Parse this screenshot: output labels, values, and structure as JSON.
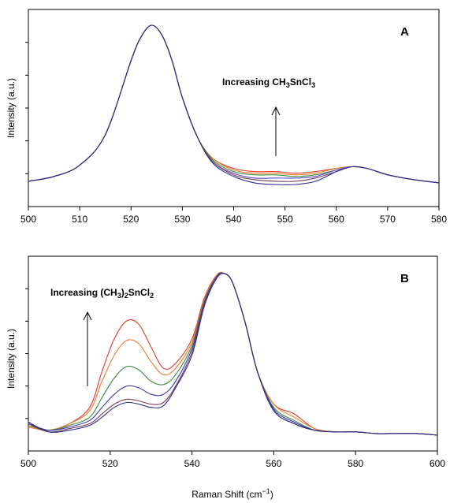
{
  "figure": {
    "xlabel_text": "Raman Shift (cm",
    "xlabel_sup": "−1",
    "xlabel_close": ")"
  },
  "chart_data": [
    {
      "type": "line",
      "panel": "A",
      "ylabel": "Intensity (a.u.)",
      "xlim": [
        500,
        580
      ],
      "x_ticks": [
        500,
        510,
        520,
        530,
        540,
        550,
        560,
        570,
        580
      ],
      "annotation": {
        "pre": "Increasing CH",
        "sub1": "3",
        "mid": "SnCl",
        "sub2": "3"
      },
      "colors": [
        "#e0392b",
        "#f07b2a",
        "#3a8a3a",
        "#5a4ac8",
        "#7a3a5a",
        "#2a2a8a"
      ],
      "series": [
        {
          "x": [
            500,
            505,
            510,
            515,
            520,
            522,
            524,
            526,
            528,
            530,
            533,
            536,
            540,
            544,
            548,
            552,
            556,
            560,
            563,
            566,
            570,
            575,
            580
          ],
          "values": [
            3,
            6,
            13,
            32,
            78,
            93,
            100,
            94,
            78,
            55,
            30,
            17,
            11,
            9,
            9,
            8,
            9,
            11,
            12,
            11,
            7,
            4,
            2
          ]
        },
        {
          "x": [
            500,
            505,
            510,
            515,
            520,
            522,
            524,
            526,
            528,
            530,
            533,
            536,
            540,
            544,
            548,
            552,
            556,
            560,
            563,
            566,
            570,
            575,
            580
          ],
          "values": [
            3,
            6,
            13,
            32,
            78,
            93,
            100,
            94,
            78,
            55,
            30,
            17,
            10,
            8,
            8,
            7,
            8,
            11,
            12,
            11,
            7,
            4,
            2
          ]
        },
        {
          "x": [
            500,
            505,
            510,
            515,
            520,
            522,
            524,
            526,
            528,
            530,
            533,
            536,
            540,
            544,
            548,
            552,
            556,
            560,
            563,
            566,
            570,
            575,
            580
          ],
          "values": [
            3,
            6,
            13,
            32,
            78,
            93,
            100,
            94,
            78,
            55,
            30,
            16,
            9,
            7,
            7,
            6,
            7,
            10,
            12,
            11,
            7,
            4,
            2
          ]
        },
        {
          "x": [
            500,
            505,
            510,
            515,
            520,
            522,
            524,
            526,
            528,
            530,
            533,
            536,
            540,
            544,
            548,
            552,
            556,
            560,
            563,
            566,
            570,
            575,
            580
          ],
          "values": [
            3,
            6,
            13,
            32,
            78,
            93,
            100,
            94,
            78,
            55,
            30,
            15,
            8,
            5,
            5,
            5,
            6,
            10,
            12,
            11,
            7,
            4,
            2
          ]
        },
        {
          "x": [
            500,
            505,
            510,
            515,
            520,
            522,
            524,
            526,
            528,
            530,
            533,
            536,
            540,
            544,
            548,
            552,
            556,
            560,
            563,
            566,
            570,
            575,
            580
          ],
          "values": [
            3,
            6,
            13,
            32,
            78,
            93,
            100,
            94,
            78,
            55,
            30,
            15,
            7,
            4,
            3,
            3,
            5,
            9,
            12,
            11,
            7,
            4,
            2
          ]
        },
        {
          "x": [
            500,
            505,
            510,
            515,
            520,
            522,
            524,
            526,
            528,
            530,
            533,
            536,
            540,
            544,
            548,
            552,
            556,
            560,
            563,
            566,
            570,
            575,
            580
          ],
          "values": [
            3,
            6,
            13,
            32,
            78,
            93,
            100,
            94,
            78,
            55,
            30,
            14,
            6,
            2,
            1,
            1,
            3,
            9,
            12,
            11,
            7,
            4,
            2
          ]
        }
      ]
    },
    {
      "type": "line",
      "panel": "B",
      "ylabel": "Intensity (a.u.)",
      "xlim": [
        500,
        600
      ],
      "x_ticks": [
        500,
        520,
        540,
        560,
        580,
        600
      ],
      "annotation": {
        "pre": "Increasing (CH",
        "sub1": "3",
        "mid": ")",
        "sub2": "2",
        "post": "SnCl",
        "sub3": "2"
      },
      "colors": [
        "#e0392b",
        "#f07b2a",
        "#3a8a3a",
        "#3a3ab0",
        "#7a3a5a",
        "#2a2a8a"
      ],
      "series": [
        {
          "x": [
            500,
            505,
            510,
            515,
            518,
            521,
            524,
            527,
            530,
            533,
            536,
            540,
            543,
            546,
            548,
            550,
            553,
            556,
            560,
            565,
            570,
            575,
            580,
            585,
            590,
            595,
            600
          ],
          "values": [
            6,
            4,
            8,
            18,
            40,
            60,
            71,
            69,
            55,
            42,
            45,
            60,
            85,
            99,
            100,
            94,
            70,
            40,
            20,
            14,
            5,
            3,
            3,
            2,
            2,
            2,
            1
          ]
        },
        {
          "x": [
            500,
            505,
            510,
            515,
            518,
            521,
            524,
            527,
            530,
            533,
            536,
            540,
            543,
            546,
            548,
            550,
            553,
            556,
            560,
            565,
            570,
            575,
            580,
            585,
            590,
            595,
            600
          ],
          "values": [
            6,
            4,
            8,
            16,
            34,
            50,
            59,
            57,
            46,
            38,
            42,
            58,
            84,
            99,
            100,
            94,
            70,
            40,
            20,
            12,
            5,
            3,
            3,
            2,
            2,
            2,
            1
          ]
        },
        {
          "x": [
            500,
            505,
            510,
            515,
            518,
            521,
            524,
            527,
            530,
            533,
            536,
            540,
            543,
            546,
            548,
            550,
            553,
            556,
            560,
            565,
            570,
            575,
            580,
            585,
            590,
            595,
            600
          ],
          "values": [
            7,
            4,
            7,
            12,
            24,
            36,
            43,
            41,
            34,
            32,
            38,
            56,
            83,
            98,
            100,
            94,
            70,
            40,
            18,
            10,
            4,
            3,
            3,
            2,
            2,
            2,
            1
          ]
        },
        {
          "x": [
            500,
            505,
            510,
            515,
            518,
            521,
            524,
            527,
            530,
            533,
            536,
            540,
            543,
            546,
            548,
            550,
            553,
            556,
            560,
            565,
            570,
            575,
            580,
            585,
            590,
            595,
            600
          ],
          "values": [
            8,
            4,
            6,
            10,
            18,
            26,
            31,
            30,
            26,
            26,
            34,
            54,
            82,
            98,
            100,
            94,
            70,
            40,
            17,
            9,
            4,
            3,
            3,
            2,
            2,
            2,
            1
          ]
        },
        {
          "x": [
            500,
            505,
            510,
            515,
            518,
            521,
            524,
            527,
            530,
            533,
            536,
            540,
            543,
            546,
            548,
            550,
            553,
            556,
            560,
            565,
            570,
            575,
            580,
            585,
            590,
            595,
            600
          ],
          "values": [
            8,
            3,
            5,
            8,
            14,
            20,
            23,
            22,
            20,
            21,
            31,
            52,
            81,
            97,
            100,
            94,
            70,
            40,
            16,
            8,
            4,
            3,
            3,
            2,
            2,
            2,
            1
          ]
        },
        {
          "x": [
            500,
            505,
            510,
            515,
            518,
            521,
            524,
            527,
            530,
            533,
            536,
            540,
            543,
            546,
            548,
            550,
            553,
            556,
            560,
            565,
            570,
            575,
            580,
            585,
            590,
            595,
            600
          ],
          "values": [
            9,
            3,
            4,
            7,
            12,
            18,
            21,
            20,
            18,
            19,
            30,
            50,
            80,
            97,
            100,
            94,
            70,
            40,
            16,
            8,
            4,
            3,
            3,
            2,
            2,
            2,
            1
          ]
        }
      ]
    }
  ]
}
